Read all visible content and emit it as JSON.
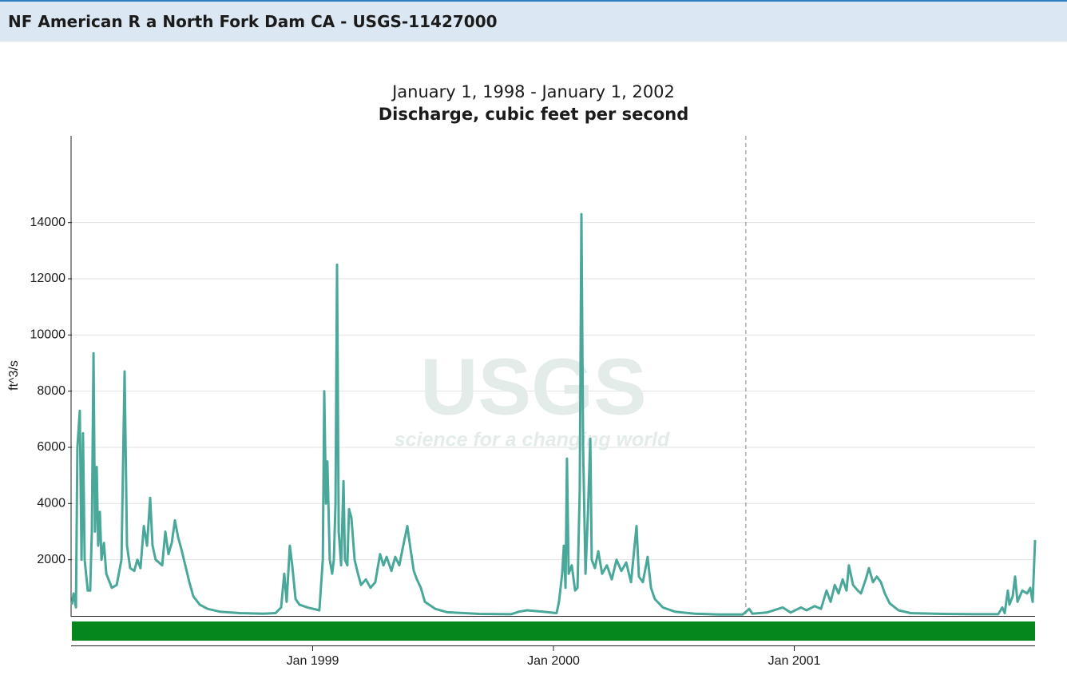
{
  "header": {
    "title": "NF American R a North Fork Dam CA - USGS-11427000"
  },
  "chart_data": {
    "type": "line",
    "title": "January 1, 1998 - January 1, 2002",
    "subtitle": "Discharge, cubic feet per second",
    "y_label": "ft^3/s",
    "watermark": {
      "logo": "USGS",
      "tagline": "science for a changing world"
    },
    "xlim": [
      1998,
      2002
    ],
    "xticks": [
      {
        "value": 1999,
        "label": "Jan 1999"
      },
      {
        "value": 2000,
        "label": "Jan 2000"
      },
      {
        "value": 2001,
        "label": "Jan 2001"
      }
    ],
    "ylim": [
      0,
      17090
    ],
    "yticks": [
      2000,
      4000,
      6000,
      8000,
      10000,
      12000,
      14000
    ],
    "grid": true,
    "marker_x": 2000.799,
    "x": [
      1998.0,
      1998.007,
      1998.017,
      1998.023,
      1998.033,
      1998.04,
      1998.046,
      1998.053,
      1998.066,
      1998.076,
      1998.083,
      1998.09,
      1998.096,
      1998.103,
      1998.109,
      1998.116,
      1998.123,
      1998.133,
      1998.143,
      1998.166,
      1998.186,
      1998.206,
      1998.219,
      1998.229,
      1998.242,
      1998.259,
      1998.272,
      1998.285,
      1998.299,
      1998.312,
      1998.325,
      1998.335,
      1998.348,
      1998.362,
      1998.375,
      1998.388,
      1998.401,
      1998.415,
      1998.428,
      1998.441,
      1998.454,
      1998.471,
      1998.488,
      1998.504,
      1998.531,
      1998.564,
      1998.614,
      1998.697,
      1998.796,
      1998.846,
      1998.869,
      1998.882,
      1998.892,
      1998.905,
      1998.915,
      1998.929,
      1998.945,
      1998.978,
      1999.028,
      1999.042,
      1999.048,
      1999.055,
      1999.061,
      1999.071,
      1999.081,
      1999.088,
      1999.095,
      1999.101,
      1999.108,
      1999.118,
      1999.128,
      1999.134,
      1999.144,
      1999.151,
      1999.161,
      1999.174,
      1999.188,
      1999.201,
      1999.221,
      1999.24,
      1999.26,
      1999.28,
      1999.294,
      1999.307,
      1999.327,
      1999.343,
      1999.36,
      1999.376,
      1999.393,
      1999.406,
      1999.42,
      1999.433,
      1999.449,
      1999.466,
      1999.509,
      1999.559,
      1999.692,
      1999.824,
      1999.857,
      1999.891,
      1999.957,
      2000.013,
      2000.023,
      2000.036,
      2000.043,
      2000.05,
      2000.056,
      2000.063,
      2000.076,
      2000.09,
      2000.1,
      2000.109,
      2000.116,
      2000.123,
      2000.133,
      2000.143,
      2000.153,
      2000.159,
      2000.172,
      2000.186,
      2000.202,
      2000.222,
      2000.242,
      2000.262,
      2000.282,
      2000.302,
      2000.322,
      2000.345,
      2000.355,
      2000.371,
      2000.391,
      2000.405,
      2000.421,
      2000.454,
      2000.504,
      2000.587,
      2000.687,
      2000.786,
      2000.813,
      2000.826,
      2000.886,
      2000.952,
      2000.985,
      2001.028,
      2001.051,
      2001.085,
      2001.111,
      2001.134,
      2001.151,
      2001.168,
      2001.184,
      2001.201,
      2001.217,
      2001.227,
      2001.244,
      2001.264,
      2001.277,
      2001.297,
      2001.31,
      2001.327,
      2001.343,
      2001.36,
      2001.376,
      2001.396,
      2001.433,
      2001.483,
      2001.615,
      2001.748,
      2001.847,
      2001.864,
      2001.874,
      2001.887,
      2001.894,
      2001.907,
      2001.917,
      2001.927,
      2001.947,
      2001.967,
      2001.98,
      2001.99,
      2002.0
    ],
    "series": [
      {
        "color": "#4aa89a",
        "values": [
          400,
          800,
          300,
          6000,
          7300,
          2000,
          6500,
          2000,
          900,
          900,
          3000,
          9350,
          3000,
          5300,
          2500,
          3700,
          2000,
          2600,
          1500,
          1000,
          1100,
          2000,
          8700,
          2500,
          1700,
          1600,
          2000,
          1700,
          3200,
          2500,
          4200,
          2500,
          2000,
          1900,
          1800,
          3000,
          2200,
          2600,
          3400,
          2800,
          2400,
          1800,
          1200,
          700,
          400,
          250,
          150,
          100,
          80,
          100,
          300,
          1500,
          500,
          2500,
          1800,
          600,
          400,
          300,
          200,
          2000,
          8000,
          4000,
          5500,
          2000,
          1500,
          2000,
          4000,
          12500,
          3000,
          1800,
          4800,
          2000,
          1800,
          3800,
          3500,
          2000,
          1500,
          1100,
          1300,
          1000,
          1200,
          2200,
          1800,
          2100,
          1600,
          2100,
          1800,
          2500,
          3200,
          2400,
          1600,
          1300,
          1000,
          500,
          250,
          130,
          70,
          60,
          150,
          200,
          150,
          100,
          500,
          1500,
          2500,
          1000,
          5600,
          1500,
          1800,
          900,
          1000,
          4500,
          14300,
          6000,
          1500,
          3600,
          6300,
          2000,
          1700,
          2300,
          1500,
          1800,
          1300,
          2000,
          1600,
          1900,
          1200,
          3200,
          1400,
          1200,
          2100,
          1000,
          600,
          300,
          150,
          80,
          50,
          50,
          250,
          80,
          120,
          300,
          120,
          300,
          200,
          350,
          250,
          900,
          500,
          1100,
          800,
          1300,
          900,
          1800,
          1100,
          900,
          800,
          1300,
          1700,
          1200,
          1400,
          1200,
          800,
          450,
          200,
          100,
          70,
          60,
          60,
          300,
          100,
          900,
          400,
          700,
          1400,
          500,
          900,
          800,
          1000,
          500,
          2700
        ]
      }
    ]
  }
}
